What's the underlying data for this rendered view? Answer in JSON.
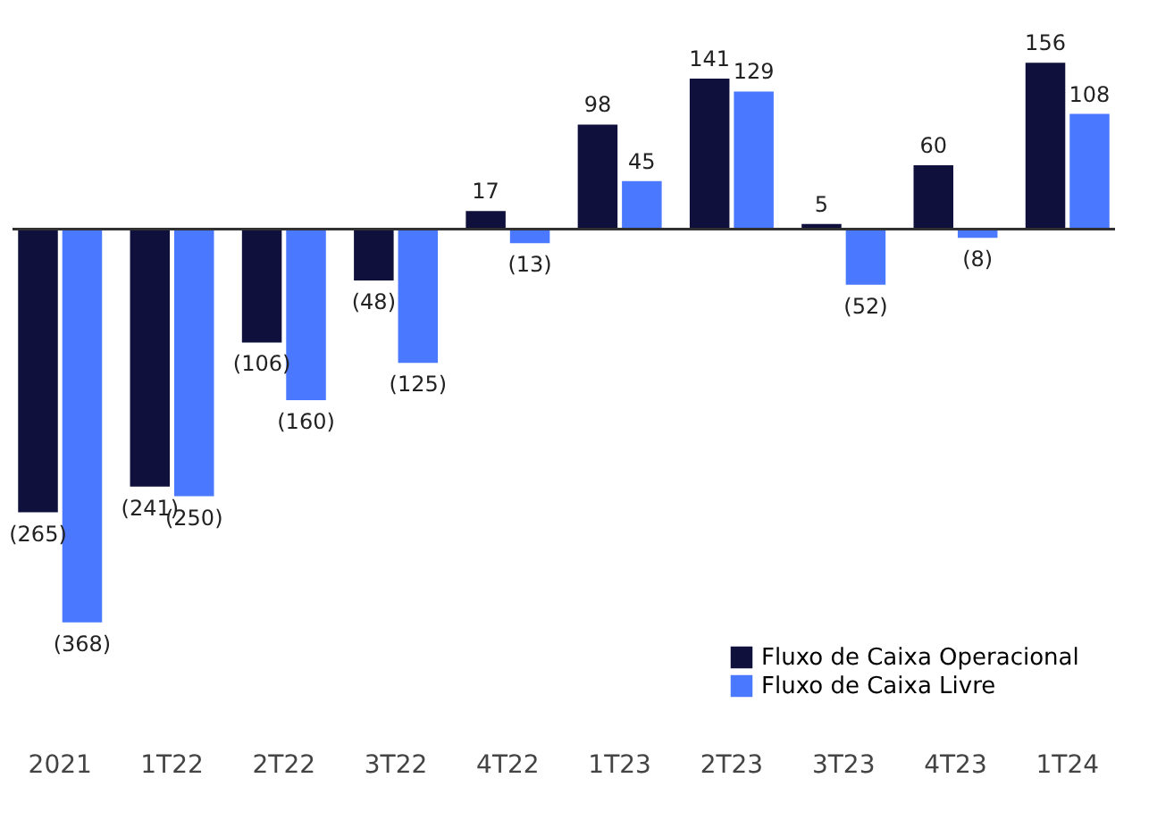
{
  "chart_data": {
    "type": "bar",
    "categories": [
      "2021",
      "1T22",
      "2T22",
      "3T22",
      "4T22",
      "1T23",
      "2T23",
      "3T23",
      "4T23",
      "1T24"
    ],
    "series": [
      {
        "name": "Fluxo de Caixa Operacional",
        "color": "#10103d",
        "values": [
          -265,
          -241,
          -106,
          -48,
          17,
          98,
          141,
          5,
          60,
          156
        ],
        "value_labels": [
          "(265)",
          "(241)",
          "(106)",
          "(48)",
          "17",
          "98",
          "141",
          "5",
          "60",
          "156"
        ]
      },
      {
        "name": "Fluxo de Caixa Livre",
        "color": "#4a78ff",
        "values": [
          -368,
          -250,
          -160,
          -125,
          -13,
          45,
          129,
          -52,
          -8,
          108
        ],
        "value_labels": [
          "(368)",
          "(250)",
          "(160)",
          "(125)",
          "(13)",
          "45",
          "129",
          "(52)",
          "(8)",
          "108"
        ]
      }
    ],
    "legend": "bottom right",
    "grid": false
  }
}
